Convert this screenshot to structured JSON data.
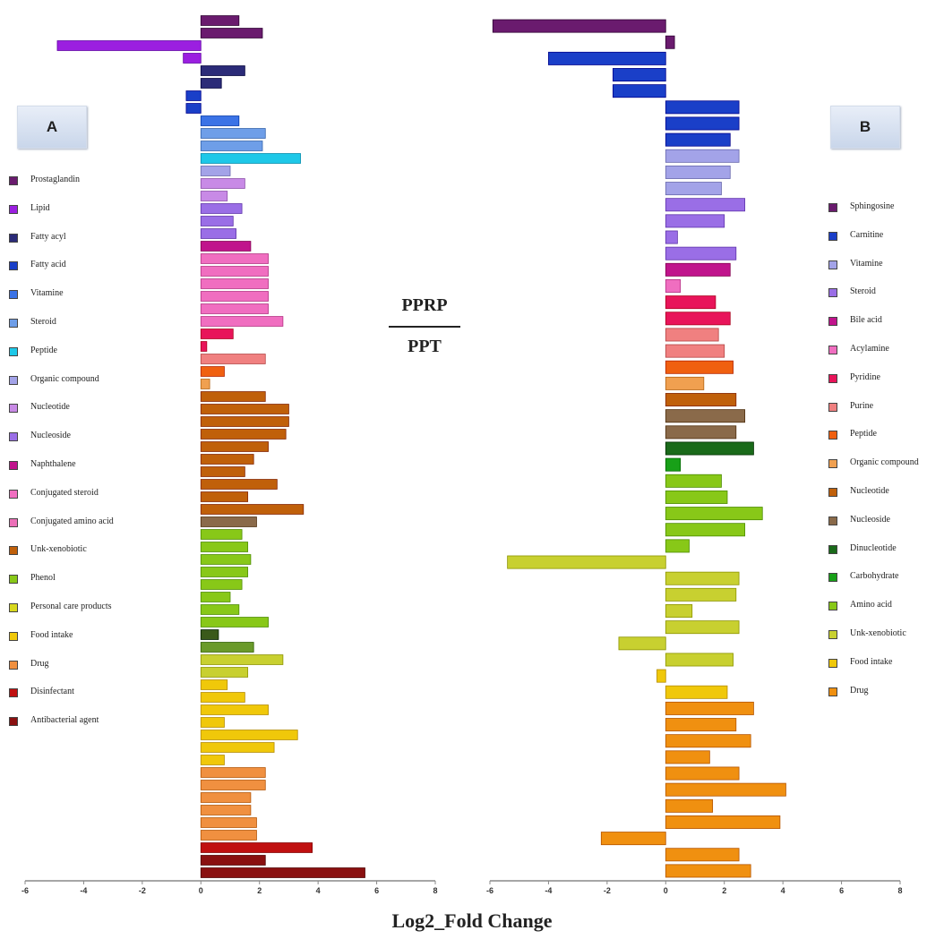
{
  "ratio": {
    "numerator": "PPRP",
    "denominator": "PPT"
  },
  "x_axis_title": "Log2_Fold Change",
  "chart_data": [
    {
      "type": "bar",
      "orientation": "horizontal",
      "panel_label": "A",
      "xlim": [
        -6,
        8
      ],
      "ticks": [
        "-6",
        "-4",
        "-2",
        "0",
        "2",
        "4",
        "6",
        "8"
      ],
      "legend": [
        {
          "label": "Prostaglandin",
          "color": "#6a1b6e"
        },
        {
          "label": "Lipid",
          "color": "#9b1fe0"
        },
        {
          "label": "Fatty acyl",
          "color": "#2b2b78"
        },
        {
          "label": "Fatty acid",
          "color": "#1a3fc8"
        },
        {
          "label": "Vitamine",
          "color": "#3b73e6"
        },
        {
          "label": "Steroid",
          "color": "#6e9ee8"
        },
        {
          "label": "Peptide",
          "color": "#1ec8e8"
        },
        {
          "label": "Organic compound",
          "color": "#a3a3e8"
        },
        {
          "label": "Nucleotide",
          "color": "#c88ae6"
        },
        {
          "label": "Nucleoside",
          "color": "#9a6ee6"
        },
        {
          "label": "Naphthalene",
          "color": "#c0148c"
        },
        {
          "label": "Conjugated steroid",
          "color": "#f06ec0"
        },
        {
          "label": "Conjugated amino acid",
          "color": "#ec70b8"
        },
        {
          "label": "Unk-xenobiotic",
          "color": "#c0600a"
        },
        {
          "label": "Phenol",
          "color": "#88c818"
        },
        {
          "label": "Personal care products",
          "color": "#d8d81e"
        },
        {
          "label": "Food intake",
          "color": "#f0c80a"
        },
        {
          "label": "Drug",
          "color": "#f09040"
        },
        {
          "label": "Disinfectant",
          "color": "#c01010"
        },
        {
          "label": "Antibacterial agent",
          "color": "#8a1010"
        }
      ],
      "bars": [
        {
          "value": 1.3,
          "color": "#6a1b6e"
        },
        {
          "value": 2.1,
          "color": "#6a1b6e"
        },
        {
          "value": -4.9,
          "color": "#9b1fe0"
        },
        {
          "value": -0.6,
          "color": "#9b1fe0"
        },
        {
          "value": 1.5,
          "color": "#2b2b78"
        },
        {
          "value": 0.7,
          "color": "#2b2b78"
        },
        {
          "value": -0.5,
          "color": "#1a3fc8"
        },
        {
          "value": -0.5,
          "color": "#1a3fc8"
        },
        {
          "value": 1.3,
          "color": "#3b73e6"
        },
        {
          "value": 2.2,
          "color": "#6e9ee8"
        },
        {
          "value": 2.1,
          "color": "#6e9ee8"
        },
        {
          "value": 3.4,
          "color": "#1ec8e8"
        },
        {
          "value": 1.0,
          "color": "#a3a3e8"
        },
        {
          "value": 1.5,
          "color": "#c88ae6"
        },
        {
          "value": 0.9,
          "color": "#c88ae6"
        },
        {
          "value": 1.4,
          "color": "#9a6ee6"
        },
        {
          "value": 1.1,
          "color": "#9a6ee6"
        },
        {
          "value": 1.2,
          "color": "#9a6ee6"
        },
        {
          "value": 1.7,
          "color": "#c0148c"
        },
        {
          "value": 2.3,
          "color": "#f06ec0"
        },
        {
          "value": 2.3,
          "color": "#f06ec0"
        },
        {
          "value": 2.3,
          "color": "#f06ec0"
        },
        {
          "value": 2.3,
          "color": "#f06ec0"
        },
        {
          "value": 2.3,
          "color": "#f06ec0"
        },
        {
          "value": 2.8,
          "color": "#f06ec0"
        },
        {
          "value": 1.1,
          "color": "#e8145a"
        },
        {
          "value": 0.2,
          "color": "#e8145a"
        },
        {
          "value": 2.2,
          "color": "#f08080"
        },
        {
          "value": 0.8,
          "color": "#f06010"
        },
        {
          "value": 0.3,
          "color": "#f0a050"
        },
        {
          "value": 2.2,
          "color": "#c0600a"
        },
        {
          "value": 3.0,
          "color": "#c0600a"
        },
        {
          "value": 3.0,
          "color": "#c0600a"
        },
        {
          "value": 2.9,
          "color": "#c0600a"
        },
        {
          "value": 2.3,
          "color": "#c0600a"
        },
        {
          "value": 1.8,
          "color": "#c0600a"
        },
        {
          "value": 1.5,
          "color": "#c0600a"
        },
        {
          "value": 2.6,
          "color": "#c0600a"
        },
        {
          "value": 1.6,
          "color": "#c0600a"
        },
        {
          "value": 3.5,
          "color": "#c0600a"
        },
        {
          "value": 1.9,
          "color": "#8a6a4a"
        },
        {
          "value": 1.4,
          "color": "#88c818"
        },
        {
          "value": 1.6,
          "color": "#88c818"
        },
        {
          "value": 1.7,
          "color": "#88c818"
        },
        {
          "value": 1.6,
          "color": "#88c818"
        },
        {
          "value": 1.4,
          "color": "#88c818"
        },
        {
          "value": 1.0,
          "color": "#88c818"
        },
        {
          "value": 1.3,
          "color": "#88c818"
        },
        {
          "value": 2.3,
          "color": "#88c818"
        },
        {
          "value": 0.6,
          "color": "#3a5a1a"
        },
        {
          "value": 1.8,
          "color": "#6a9a2a"
        },
        {
          "value": 2.8,
          "color": "#c8d030"
        },
        {
          "value": 1.6,
          "color": "#c8d030"
        },
        {
          "value": 0.9,
          "color": "#f0c80a"
        },
        {
          "value": 1.5,
          "color": "#f0c80a"
        },
        {
          "value": 2.3,
          "color": "#f0c80a"
        },
        {
          "value": 0.8,
          "color": "#f0c80a"
        },
        {
          "value": 3.3,
          "color": "#f0c80a"
        },
        {
          "value": 2.5,
          "color": "#f0c80a"
        },
        {
          "value": 0.8,
          "color": "#f0c80a"
        },
        {
          "value": 2.2,
          "color": "#f09040"
        },
        {
          "value": 2.2,
          "color": "#f09040"
        },
        {
          "value": 1.7,
          "color": "#f09040"
        },
        {
          "value": 1.7,
          "color": "#f09040"
        },
        {
          "value": 1.9,
          "color": "#f09040"
        },
        {
          "value": 1.9,
          "color": "#f09040"
        },
        {
          "value": 3.8,
          "color": "#c01010"
        },
        {
          "value": 2.2,
          "color": "#8a1010"
        },
        {
          "value": 5.6,
          "color": "#8a1010"
        }
      ]
    },
    {
      "type": "bar",
      "orientation": "horizontal",
      "panel_label": "B",
      "xlim": [
        -6,
        8
      ],
      "ticks": [
        "-6",
        "-4",
        "-2",
        "0",
        "2",
        "4",
        "6",
        "8"
      ],
      "legend": [
        {
          "label": "Sphingosine",
          "color": "#6a1b6e"
        },
        {
          "label": "Carnitine",
          "color": "#1a3fc8"
        },
        {
          "label": "Vitamine",
          "color": "#a3a3e8"
        },
        {
          "label": "Steroid",
          "color": "#9a6ee6"
        },
        {
          "label": "Bile acid",
          "color": "#c0148c"
        },
        {
          "label": "Acylamine",
          "color": "#f06ec0"
        },
        {
          "label": "Pyridine",
          "color": "#e8145a"
        },
        {
          "label": "Purine",
          "color": "#f08080"
        },
        {
          "label": "Peptide",
          "color": "#f06010"
        },
        {
          "label": "Organic compound",
          "color": "#f0a050"
        },
        {
          "label": "Nucleotide",
          "color": "#c0600a"
        },
        {
          "label": "Nucleoside",
          "color": "#8a6a4a"
        },
        {
          "label": "Dinucleotide",
          "color": "#1a6a1a"
        },
        {
          "label": "Carbohydrate",
          "color": "#18a018"
        },
        {
          "label": "Amino acid",
          "color": "#88c818"
        },
        {
          "label": "Unk-xenobiotic",
          "color": "#c8d030"
        },
        {
          "label": "Food intake",
          "color": "#f0c80a"
        },
        {
          "label": "Drug",
          "color": "#f09010"
        }
      ],
      "bars": [
        {
          "value": -5.9,
          "color": "#6a1b6e"
        },
        {
          "value": 0.3,
          "color": "#6a1b6e"
        },
        {
          "value": -4.0,
          "color": "#1a3fc8"
        },
        {
          "value": -1.8,
          "color": "#1a3fc8"
        },
        {
          "value": -1.8,
          "color": "#1a3fc8"
        },
        {
          "value": 2.5,
          "color": "#1a3fc8"
        },
        {
          "value": 2.5,
          "color": "#1a3fc8"
        },
        {
          "value": 2.2,
          "color": "#1a3fc8"
        },
        {
          "value": 2.5,
          "color": "#a3a3e8"
        },
        {
          "value": 2.2,
          "color": "#a3a3e8"
        },
        {
          "value": 1.9,
          "color": "#a3a3e8"
        },
        {
          "value": 2.7,
          "color": "#9a6ee6"
        },
        {
          "value": 2.0,
          "color": "#9a6ee6"
        },
        {
          "value": 0.4,
          "color": "#9a6ee6"
        },
        {
          "value": 2.4,
          "color": "#9a6ee6"
        },
        {
          "value": 2.2,
          "color": "#c0148c"
        },
        {
          "value": 0.5,
          "color": "#f06ec0"
        },
        {
          "value": 1.7,
          "color": "#e8145a"
        },
        {
          "value": 2.2,
          "color": "#e8145a"
        },
        {
          "value": 1.8,
          "color": "#f08080"
        },
        {
          "value": 2.0,
          "color": "#f08080"
        },
        {
          "value": 2.3,
          "color": "#f06010"
        },
        {
          "value": 1.3,
          "color": "#f0a050"
        },
        {
          "value": 2.4,
          "color": "#c0600a"
        },
        {
          "value": 2.7,
          "color": "#8a6a4a"
        },
        {
          "value": 2.4,
          "color": "#8a6a4a"
        },
        {
          "value": 3.0,
          "color": "#1a6a1a"
        },
        {
          "value": 0.5,
          "color": "#18a018"
        },
        {
          "value": 1.9,
          "color": "#88c818"
        },
        {
          "value": 2.1,
          "color": "#88c818"
        },
        {
          "value": 3.3,
          "color": "#88c818"
        },
        {
          "value": 2.7,
          "color": "#88c818"
        },
        {
          "value": 0.8,
          "color": "#88c818"
        },
        {
          "value": -5.4,
          "color": "#c8d030"
        },
        {
          "value": 2.5,
          "color": "#c8d030"
        },
        {
          "value": 2.4,
          "color": "#c8d030"
        },
        {
          "value": 0.9,
          "color": "#c8d030"
        },
        {
          "value": 2.5,
          "color": "#c8d030"
        },
        {
          "value": -1.6,
          "color": "#c8d030"
        },
        {
          "value": 2.3,
          "color": "#c8d030"
        },
        {
          "value": -0.3,
          "color": "#f0c80a"
        },
        {
          "value": 2.1,
          "color": "#f0c80a"
        },
        {
          "value": 3.0,
          "color": "#f09010"
        },
        {
          "value": 2.4,
          "color": "#f09010"
        },
        {
          "value": 2.9,
          "color": "#f09010"
        },
        {
          "value": 1.5,
          "color": "#f09010"
        },
        {
          "value": 2.5,
          "color": "#f09010"
        },
        {
          "value": 4.1,
          "color": "#f09010"
        },
        {
          "value": 1.6,
          "color": "#f09010"
        },
        {
          "value": 3.9,
          "color": "#f09010"
        },
        {
          "value": -2.2,
          "color": "#f09010"
        },
        {
          "value": 2.5,
          "color": "#f09010"
        },
        {
          "value": 2.9,
          "color": "#f09010"
        }
      ]
    }
  ]
}
